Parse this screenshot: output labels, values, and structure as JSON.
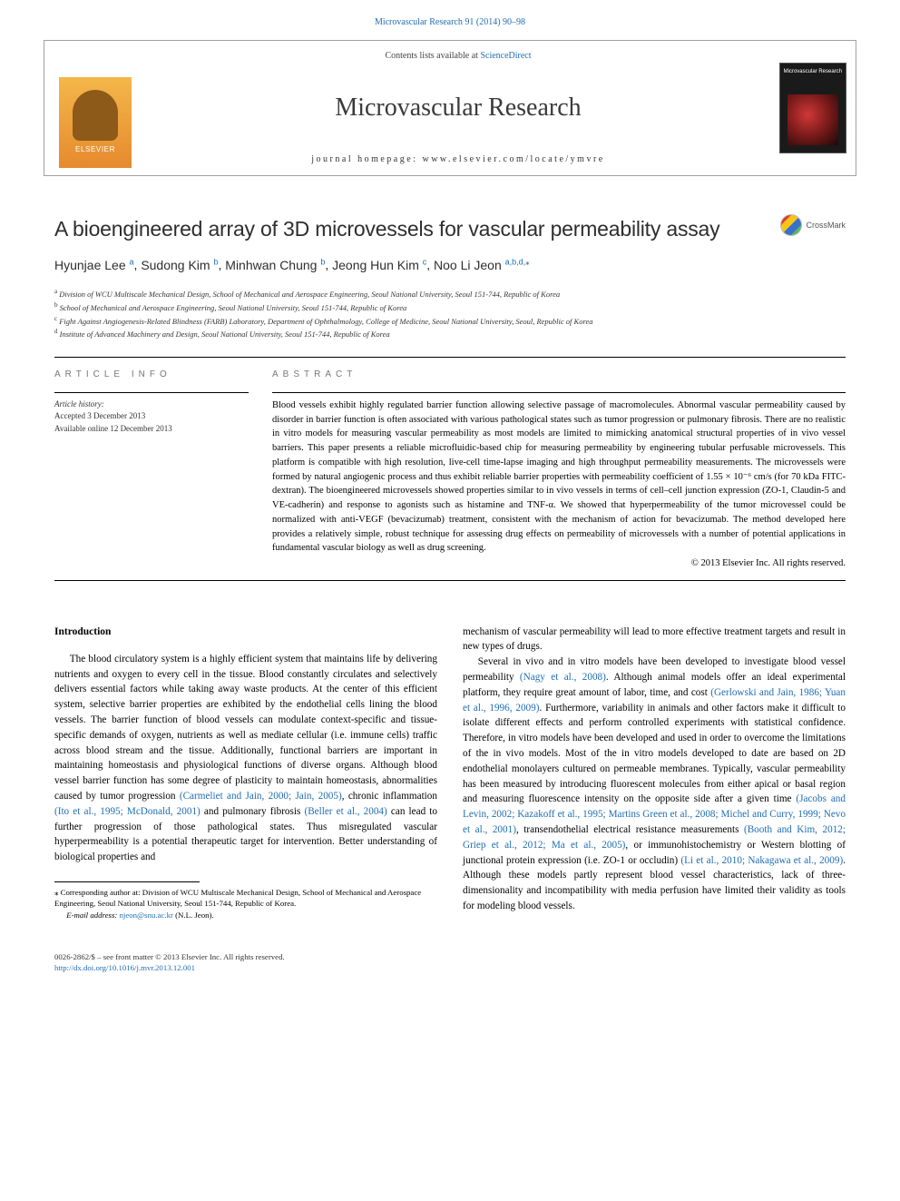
{
  "top_link": {
    "journal": "Microvascular Research",
    "citation": "91 (2014) 90–98"
  },
  "header": {
    "contents_prefix": "Contents lists available at ",
    "contents_link": "ScienceDirect",
    "journal_name": "Microvascular Research",
    "homepage_prefix": "journal homepage: ",
    "homepage_url": "www.elsevier.com/locate/ymvre",
    "publisher_logo_text": "ELSEVIER",
    "cover_title": "Microvascular Research"
  },
  "title": "A bioengineered array of 3D microvessels for vascular permeability assay",
  "crossmark": "CrossMark",
  "authors": [
    {
      "name": "Hyunjae Lee",
      "aff": "a"
    },
    {
      "name": "Sudong Kim",
      "aff": "b"
    },
    {
      "name": "Minhwan Chung",
      "aff": "b"
    },
    {
      "name": "Jeong Hun Kim",
      "aff": "c"
    },
    {
      "name": "Noo Li Jeon",
      "aff": "a,b,d,",
      "corresponding": true
    }
  ],
  "affiliations": {
    "a": "Division of WCU Multiscale Mechanical Design, School of Mechanical and Aerospace Engineering, Seoul National University, Seoul 151-744, Republic of Korea",
    "b": "School of Mechanical and Aerospace Engineering, Seoul National University, Seoul 151-744, Republic of Korea",
    "c": "Fight Against Angiogenesis-Related Blindness (FARB) Laboratory, Department of Ophthalmology, College of Medicine, Seoul National University, Seoul, Republic of Korea",
    "d": "Institute of Advanced Machinery and Design, Seoul National University, Seoul 151-744, Republic of Korea"
  },
  "article_info": {
    "heading": "ARTICLE INFO",
    "history_label": "Article history:",
    "accepted": "Accepted 3 December 2013",
    "online": "Available online 12 December 2013"
  },
  "abstract": {
    "heading": "ABSTRACT",
    "text": "Blood vessels exhibit highly regulated barrier function allowing selective passage of macromolecules. Abnormal vascular permeability caused by disorder in barrier function is often associated with various pathological states such as tumor progression or pulmonary fibrosis. There are no realistic in vitro models for measuring vascular permeability as most models are limited to mimicking anatomical structural properties of in vivo vessel barriers. This paper presents a reliable microfluidic-based chip for measuring permeability by engineering tubular perfusable microvessels. This platform is compatible with high resolution, live-cell time-lapse imaging and high throughput permeability measurements. The microvessels were formed by natural angiogenic process and thus exhibit reliable barrier properties with permeability coefficient of 1.55 × 10⁻⁶ cm/s (for 70 kDa FITC-dextran). The bioengineered microvessels showed properties similar to in vivo vessels in terms of cell–cell junction expression (ZO-1, Claudin-5 and VE-cadherin) and response to agonists such as histamine and TNF-α. We showed that hyperpermeability of the tumor microvessel could be normalized with anti-VEGF (bevacizumab) treatment, consistent with the mechanism of action for bevacizumab. The method developed here provides a relatively simple, robust technique for assessing drug effects on permeability of microvessels with a number of potential applications in fundamental vascular biology as well as drug screening.",
    "copyright": "© 2013 Elsevier Inc. All rights reserved."
  },
  "introduction": {
    "heading": "Introduction",
    "col1_p1_a": "The blood circulatory system is a highly efficient system that maintains life by delivering nutrients and oxygen to every cell in the tissue. Blood constantly circulates and selectively delivers essential factors while taking away waste products. At the center of this efficient system, selective barrier properties are exhibited by the endothelial cells lining the blood vessels. The barrier function of blood vessels can modulate context-specific and tissue-specific demands of oxygen, nutrients as well as mediate cellular (i.e. immune cells) traffic across blood stream and the tissue. Additionally, functional barriers are important in maintaining homeostasis and physiological functions of diverse organs. Although blood vessel barrier function has some degree of plasticity to maintain homeostasis, abnormalities caused by tumor progression ",
    "cite1": "(Carmeliet and Jain, 2000; Jain, 2005)",
    "col1_p1_b": ", chronic inflammation ",
    "cite2": "(Ito et al., 1995; McDonald, 2001)",
    "col1_p1_c": " and pulmonary fibrosis ",
    "cite3": "(Beller et al., 2004)",
    "col1_p1_d": " can lead to further progression of those pathological states. Thus misregulated vascular hyperpermeability is a potential therapeutic target for intervention. Better understanding of biological properties and",
    "col2_p1": "mechanism of vascular permeability will lead to more effective treatment targets and result in new types of drugs.",
    "col2_p2_a": "Several in vivo and in vitro models have been developed to investigate blood vessel permeability ",
    "cite4": "(Nagy et al., 2008)",
    "col2_p2_b": ". Although animal models offer an ideal experimental platform, they require great amount of labor, time, and cost ",
    "cite5": "(Gerlowski and Jain, 1986; Yuan et al., 1996, 2009)",
    "col2_p2_c": ". Furthermore, variability in animals and other factors make it difficult to isolate different effects and perform controlled experiments with statistical confidence. Therefore, in vitro models have been developed and used in order to overcome the limitations of the in vivo models. Most of the in vitro models developed to date are based on 2D endothelial monolayers cultured on permeable membranes. Typically, vascular permeability has been measured by introducing fluorescent molecules from either apical or basal region and measuring fluorescence intensity on the opposite side after a given time ",
    "cite6": "(Jacobs and Levin, 2002; Kazakoff et al., 1995; Martins Green et al., 2008; Michel and Curry, 1999; Nevo et al., 2001)",
    "col2_p2_d": ", transendothelial electrical resistance measurements ",
    "cite7": "(Booth and Kim, 2012; Griep et al., 2012; Ma et al., 2005)",
    "col2_p2_e": ", or immunohistochemistry or Western blotting of junctional protein expression (i.e. ZO-1 or occludin) ",
    "cite8": "(Li et al., 2010; Nakagawa et al., 2009)",
    "col2_p2_f": ". Although these models partly represent blood vessel characteristics, lack of three-dimensionality and incompatibility with media perfusion have limited their validity as tools for modeling blood vessels."
  },
  "corresponding": {
    "label": "⁎ Corresponding author at: Division of WCU Multiscale Mechanical Design, School of Mechanical and Aerospace Engineering, Seoul National University, Seoul 151-744, Republic of Korea.",
    "email_label": "E-mail address: ",
    "email": "njeon@snu.ac.kr",
    "email_name": " (N.L. Jeon)."
  },
  "footer": {
    "issn_line": "0026-2862/$ – see front matter © 2013 Elsevier Inc. All rights reserved.",
    "doi": "http://dx.doi.org/10.1016/j.mvr.2013.12.001"
  },
  "colors": {
    "link": "#1f6db3",
    "text": "#000000",
    "muted": "#777777"
  }
}
